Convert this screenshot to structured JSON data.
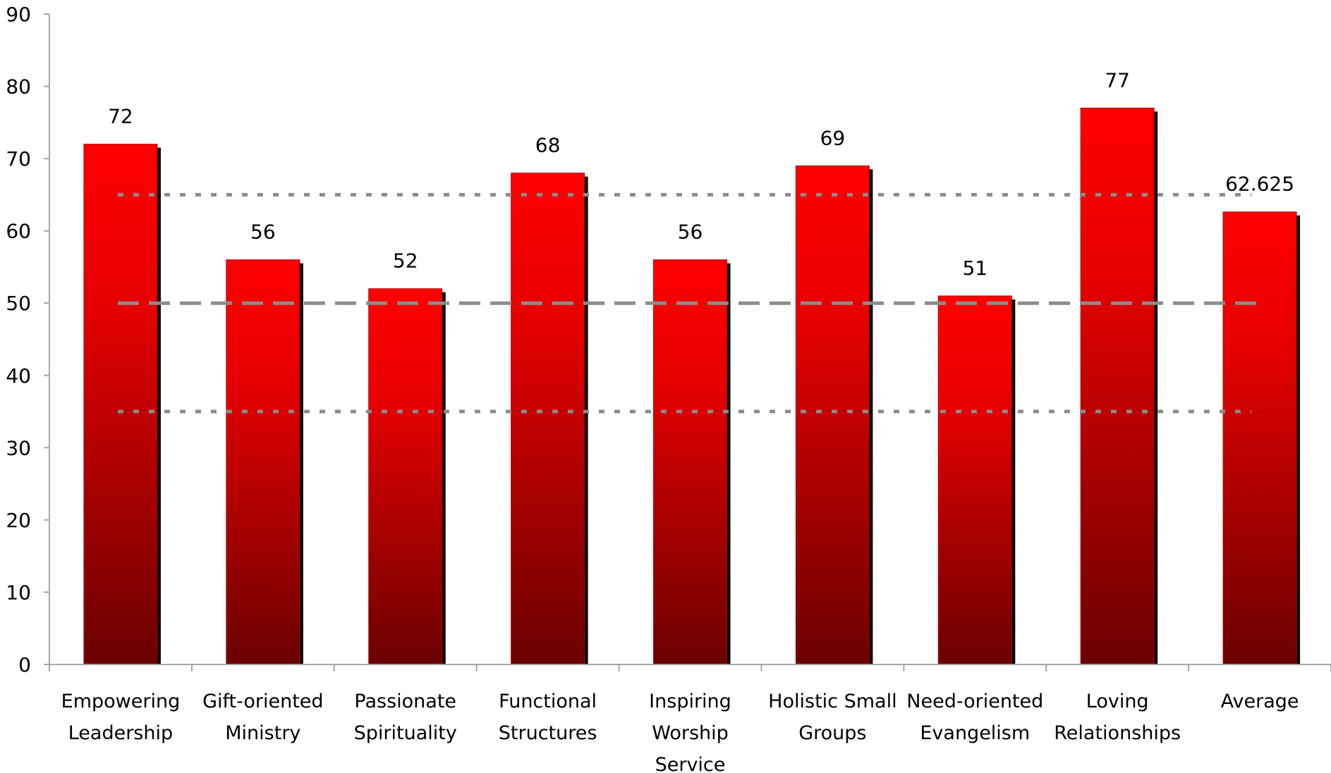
{
  "chart_data": {
    "type": "bar",
    "title": "",
    "xlabel": "",
    "ylabel": "",
    "ylim": [
      0,
      90
    ],
    "yticks": [
      0,
      10,
      20,
      30,
      40,
      50,
      60,
      70,
      80,
      90
    ],
    "grid": false,
    "legend": "none",
    "categories": [
      [
        "Empowering",
        "Leadership"
      ],
      [
        "Gift-oriented",
        "Ministry"
      ],
      [
        "Passionate",
        "Spirituality"
      ],
      [
        "Functional",
        "Structures"
      ],
      [
        "Inspiring",
        "Worship",
        "Service"
      ],
      [
        "Holistic Small",
        "Groups"
      ],
      [
        "Need-oriented",
        "Evangelism"
      ],
      [
        "Loving",
        "Relationships"
      ],
      [
        "Average"
      ]
    ],
    "values": [
      72,
      56,
      52,
      68,
      56,
      69,
      51,
      77,
      62.625
    ],
    "value_labels": [
      "72",
      "56",
      "52",
      "68",
      "56",
      "69",
      "51",
      "77",
      "62.625"
    ],
    "reference_lines": [
      {
        "y": 65,
        "style": "dotted"
      },
      {
        "y": 50,
        "style": "dashed"
      },
      {
        "y": 35,
        "style": "dotted"
      }
    ],
    "colors": {
      "bar_top": "#ff0000",
      "bar_bottom": "#6a0000",
      "bar_shadow": "#000000",
      "axis": "#a6a6a6",
      "reference_line": "#8c8c8c"
    }
  }
}
